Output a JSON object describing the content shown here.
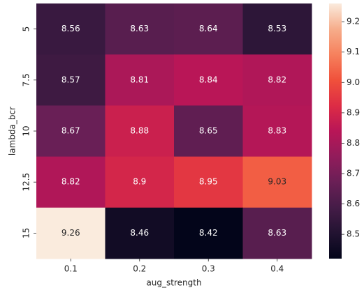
{
  "chart_data": {
    "type": "heatmap",
    "x_label": "aug_strength",
    "y_label": "lambda_bcr",
    "x_categories": [
      "0.1",
      "0.2",
      "0.3",
      "0.4"
    ],
    "y_categories": [
      "5",
      "7.5",
      "10",
      "12.5",
      "15"
    ],
    "values": [
      [
        8.56,
        8.63,
        8.64,
        8.53
      ],
      [
        8.57,
        8.81,
        8.84,
        8.82
      ],
      [
        8.67,
        8.88,
        8.65,
        8.83
      ],
      [
        8.82,
        8.9,
        8.95,
        9.03
      ],
      [
        9.26,
        8.46,
        8.42,
        8.63
      ]
    ],
    "colormap": "rocket",
    "zlim": [
      8.42,
      9.26
    ],
    "zticks": [
      8.5,
      8.6,
      8.7,
      8.8,
      8.9,
      {
        "value": 9,
        "label": "9.0"
      },
      9.1,
      9.2
    ]
  }
}
